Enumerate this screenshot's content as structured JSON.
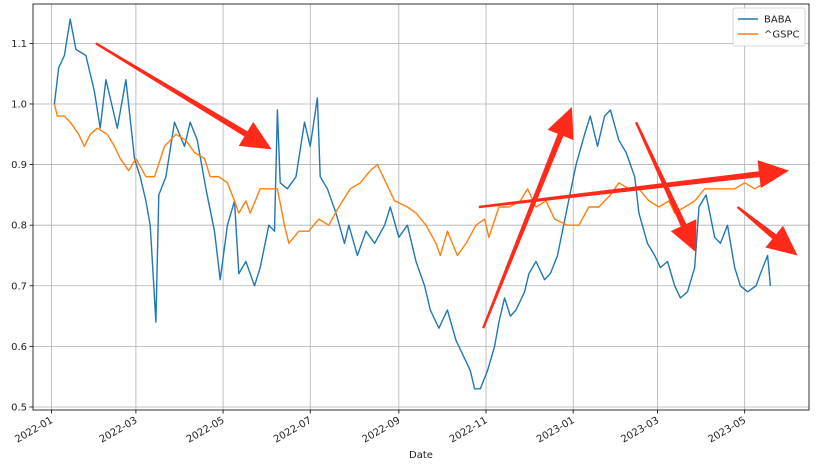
{
  "chart_data": {
    "type": "line",
    "xlabel": "Date",
    "ylabel": "",
    "x_ticks": [
      "2022-01",
      "2022-03",
      "2022-05",
      "2022-07",
      "2022-09",
      "2022-11",
      "2023-01",
      "2023-03",
      "2023-05"
    ],
    "y_ticks": [
      0.5,
      0.6,
      0.7,
      0.8,
      0.9,
      1.0,
      1.1
    ],
    "xlim": [
      "2021-12-19",
      "2023-06-15"
    ],
    "ylim": [
      0.495,
      1.165
    ],
    "grid": true,
    "legend": "top-right",
    "series": [
      {
        "name": "BABA",
        "color": "#1f77b4",
        "points": [
          [
            "2022-01-03",
            1.0
          ],
          [
            "2022-01-06",
            1.06
          ],
          [
            "2022-01-10",
            1.08
          ],
          [
            "2022-01-14",
            1.14
          ],
          [
            "2022-01-18",
            1.09
          ],
          [
            "2022-01-25",
            1.08
          ],
          [
            "2022-01-31",
            1.02
          ],
          [
            "2022-02-04",
            0.96
          ],
          [
            "2022-02-08",
            1.04
          ],
          [
            "2022-02-11",
            1.01
          ],
          [
            "2022-02-16",
            0.96
          ],
          [
            "2022-02-22",
            1.04
          ],
          [
            "2022-02-28",
            0.91
          ],
          [
            "2022-03-04",
            0.88
          ],
          [
            "2022-03-08",
            0.84
          ],
          [
            "2022-03-11",
            0.8
          ],
          [
            "2022-03-14",
            0.68
          ],
          [
            "2022-03-15",
            0.64
          ],
          [
            "2022-03-17",
            0.85
          ],
          [
            "2022-03-22",
            0.88
          ],
          [
            "2022-03-28",
            0.97
          ],
          [
            "2022-04-04",
            0.93
          ],
          [
            "2022-04-08",
            0.97
          ],
          [
            "2022-04-13",
            0.94
          ],
          [
            "2022-04-19",
            0.86
          ],
          [
            "2022-04-25",
            0.79
          ],
          [
            "2022-04-29",
            0.71
          ],
          [
            "2022-05-04",
            0.8
          ],
          [
            "2022-05-09",
            0.84
          ],
          [
            "2022-05-12",
            0.72
          ],
          [
            "2022-05-17",
            0.74
          ],
          [
            "2022-05-23",
            0.7
          ],
          [
            "2022-05-27",
            0.73
          ],
          [
            "2022-06-02",
            0.8
          ],
          [
            "2022-06-06",
            0.79
          ],
          [
            "2022-06-08",
            0.99
          ],
          [
            "2022-06-10",
            0.87
          ],
          [
            "2022-06-15",
            0.86
          ],
          [
            "2022-06-21",
            0.88
          ],
          [
            "2022-06-27",
            0.97
          ],
          [
            "2022-07-01",
            0.93
          ],
          [
            "2022-07-06",
            1.01
          ],
          [
            "2022-07-08",
            0.88
          ],
          [
            "2022-07-13",
            0.86
          ],
          [
            "2022-07-19",
            0.82
          ],
          [
            "2022-07-25",
            0.77
          ],
          [
            "2022-07-28",
            0.8
          ],
          [
            "2022-08-03",
            0.75
          ],
          [
            "2022-08-09",
            0.79
          ],
          [
            "2022-08-15",
            0.77
          ],
          [
            "2022-08-22",
            0.8
          ],
          [
            "2022-08-26",
            0.83
          ],
          [
            "2022-09-01",
            0.78
          ],
          [
            "2022-09-07",
            0.8
          ],
          [
            "2022-09-13",
            0.74
          ],
          [
            "2022-09-19",
            0.7
          ],
          [
            "2022-09-23",
            0.66
          ],
          [
            "2022-09-29",
            0.63
          ],
          [
            "2022-10-05",
            0.66
          ],
          [
            "2022-10-11",
            0.61
          ],
          [
            "2022-10-17",
            0.58
          ],
          [
            "2022-10-21",
            0.56
          ],
          [
            "2022-10-24",
            0.53
          ],
          [
            "2022-10-28",
            0.53
          ],
          [
            "2022-11-02",
            0.56
          ],
          [
            "2022-11-07",
            0.6
          ],
          [
            "2022-11-10",
            0.64
          ],
          [
            "2022-11-14",
            0.68
          ],
          [
            "2022-11-18",
            0.65
          ],
          [
            "2022-11-22",
            0.66
          ],
          [
            "2022-11-28",
            0.69
          ],
          [
            "2022-12-01",
            0.72
          ],
          [
            "2022-12-06",
            0.74
          ],
          [
            "2022-12-12",
            0.71
          ],
          [
            "2022-12-16",
            0.72
          ],
          [
            "2022-12-21",
            0.75
          ],
          [
            "2022-12-27",
            0.82
          ],
          [
            "2023-01-03",
            0.9
          ],
          [
            "2023-01-09",
            0.95
          ],
          [
            "2023-01-13",
            0.98
          ],
          [
            "2023-01-18",
            0.93
          ],
          [
            "2023-01-23",
            0.98
          ],
          [
            "2023-01-27",
            0.99
          ],
          [
            "2023-02-02",
            0.94
          ],
          [
            "2023-02-07",
            0.92
          ],
          [
            "2023-02-13",
            0.88
          ],
          [
            "2023-02-16",
            0.82
          ],
          [
            "2023-02-22",
            0.77
          ],
          [
            "2023-02-27",
            0.75
          ],
          [
            "2023-03-03",
            0.73
          ],
          [
            "2023-03-08",
            0.74
          ],
          [
            "2023-03-13",
            0.7
          ],
          [
            "2023-03-17",
            0.68
          ],
          [
            "2023-03-22",
            0.69
          ],
          [
            "2023-03-27",
            0.73
          ],
          [
            "2023-03-30",
            0.83
          ],
          [
            "2023-04-04",
            0.85
          ],
          [
            "2023-04-10",
            0.78
          ],
          [
            "2023-04-14",
            0.77
          ],
          [
            "2023-04-19",
            0.8
          ],
          [
            "2023-04-24",
            0.73
          ],
          [
            "2023-04-28",
            0.7
          ],
          [
            "2023-05-03",
            0.69
          ],
          [
            "2023-05-09",
            0.7
          ],
          [
            "2023-05-12",
            0.72
          ],
          [
            "2023-05-17",
            0.75
          ],
          [
            "2023-05-19",
            0.7
          ]
        ]
      },
      {
        "name": "^GSPC",
        "color": "#ff7f0e",
        "points": [
          [
            "2022-01-03",
            1.0
          ],
          [
            "2022-01-05",
            0.98
          ],
          [
            "2022-01-10",
            0.98
          ],
          [
            "2022-01-14",
            0.97
          ],
          [
            "2022-01-20",
            0.95
          ],
          [
            "2022-01-24",
            0.93
          ],
          [
            "2022-01-28",
            0.95
          ],
          [
            "2022-02-02",
            0.96
          ],
          [
            "2022-02-09",
            0.95
          ],
          [
            "2022-02-14",
            0.93
          ],
          [
            "2022-02-18",
            0.91
          ],
          [
            "2022-02-24",
            0.89
          ],
          [
            "2022-03-01",
            0.91
          ],
          [
            "2022-03-08",
            0.88
          ],
          [
            "2022-03-14",
            0.88
          ],
          [
            "2022-03-21",
            0.93
          ],
          [
            "2022-03-29",
            0.95
          ],
          [
            "2022-04-05",
            0.94
          ],
          [
            "2022-04-11",
            0.92
          ],
          [
            "2022-04-18",
            0.91
          ],
          [
            "2022-04-22",
            0.88
          ],
          [
            "2022-04-28",
            0.88
          ],
          [
            "2022-05-04",
            0.87
          ],
          [
            "2022-05-09",
            0.84
          ],
          [
            "2022-05-12",
            0.82
          ],
          [
            "2022-05-17",
            0.84
          ],
          [
            "2022-05-20",
            0.82
          ],
          [
            "2022-05-27",
            0.86
          ],
          [
            "2022-06-03",
            0.86
          ],
          [
            "2022-06-08",
            0.86
          ],
          [
            "2022-06-13",
            0.8
          ],
          [
            "2022-06-16",
            0.77
          ],
          [
            "2022-06-23",
            0.79
          ],
          [
            "2022-06-30",
            0.79
          ],
          [
            "2022-07-07",
            0.81
          ],
          [
            "2022-07-14",
            0.8
          ],
          [
            "2022-07-21",
            0.83
          ],
          [
            "2022-07-29",
            0.86
          ],
          [
            "2022-08-05",
            0.87
          ],
          [
            "2022-08-12",
            0.89
          ],
          [
            "2022-08-17",
            0.9
          ],
          [
            "2022-08-23",
            0.87
          ],
          [
            "2022-08-29",
            0.84
          ],
          [
            "2022-09-07",
            0.83
          ],
          [
            "2022-09-13",
            0.82
          ],
          [
            "2022-09-20",
            0.8
          ],
          [
            "2022-09-27",
            0.77
          ],
          [
            "2022-09-30",
            0.75
          ],
          [
            "2022-10-05",
            0.79
          ],
          [
            "2022-10-12",
            0.75
          ],
          [
            "2022-10-18",
            0.77
          ],
          [
            "2022-10-25",
            0.8
          ],
          [
            "2022-10-31",
            0.81
          ],
          [
            "2022-11-03",
            0.78
          ],
          [
            "2022-11-10",
            0.83
          ],
          [
            "2022-11-17",
            0.83
          ],
          [
            "2022-11-25",
            0.84
          ],
          [
            "2022-11-30",
            0.86
          ],
          [
            "2022-12-06",
            0.83
          ],
          [
            "2022-12-13",
            0.84
          ],
          [
            "2022-12-19",
            0.81
          ],
          [
            "2022-12-28",
            0.8
          ],
          [
            "2023-01-05",
            0.8
          ],
          [
            "2023-01-12",
            0.83
          ],
          [
            "2023-01-19",
            0.83
          ],
          [
            "2023-01-27",
            0.85
          ],
          [
            "2023-02-02",
            0.87
          ],
          [
            "2023-02-09",
            0.86
          ],
          [
            "2023-02-16",
            0.86
          ],
          [
            "2023-02-23",
            0.84
          ],
          [
            "2023-03-02",
            0.83
          ],
          [
            "2023-03-09",
            0.84
          ],
          [
            "2023-03-13",
            0.82
          ],
          [
            "2023-03-20",
            0.83
          ],
          [
            "2023-03-27",
            0.84
          ],
          [
            "2023-04-03",
            0.86
          ],
          [
            "2023-04-10",
            0.86
          ],
          [
            "2023-04-17",
            0.86
          ],
          [
            "2023-04-24",
            0.86
          ],
          [
            "2023-05-01",
            0.87
          ],
          [
            "2023-05-08",
            0.86
          ],
          [
            "2023-05-15",
            0.87
          ],
          [
            "2023-05-19",
            0.88
          ]
        ]
      }
    ],
    "annotations": [
      {
        "type": "arrow",
        "color": "#ff2a1a",
        "from": [
          "2022-02-01",
          1.1
        ],
        "to": [
          "2022-06-04",
          0.925
        ]
      },
      {
        "type": "arrow",
        "color": "#ff2a1a",
        "from": [
          "2022-10-30",
          0.63
        ],
        "to": [
          "2022-12-31",
          0.995
        ]
      },
      {
        "type": "arrow",
        "color": "#ff2a1a",
        "from": [
          "2022-10-27",
          0.83
        ],
        "to": [
          "2023-06-01",
          0.89
        ]
      },
      {
        "type": "arrow",
        "color": "#ff2a1a",
        "from": [
          "2023-02-14",
          0.97
        ],
        "to": [
          "2023-03-28",
          0.755
        ]
      },
      {
        "type": "arrow",
        "color": "#ff2a1a",
        "from": [
          "2023-04-26",
          0.83
        ],
        "to": [
          "2023-06-07",
          0.75
        ]
      }
    ]
  }
}
